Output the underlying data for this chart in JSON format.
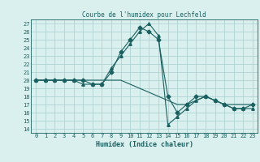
{
  "title": "Courbe de l'humidex pour Lechfeld",
  "xlabel": "Humidex (Indice chaleur)",
  "xlim": [
    -0.5,
    23.5
  ],
  "ylim": [
    13.5,
    27.5
  ],
  "yticks": [
    14,
    15,
    16,
    17,
    18,
    19,
    20,
    21,
    22,
    23,
    24,
    25,
    26,
    27
  ],
  "xticks": [
    0,
    1,
    2,
    3,
    4,
    5,
    6,
    7,
    8,
    9,
    10,
    11,
    12,
    13,
    14,
    15,
    16,
    17,
    18,
    19,
    20,
    21,
    22,
    23
  ],
  "bg_color": "#d9f0ee",
  "grid_color": "#a8cece",
  "line_color": "#1a6060",
  "series1_x": [
    0,
    1,
    2,
    3,
    4,
    5,
    6,
    7,
    8,
    9,
    10,
    11,
    12,
    13,
    14,
    15,
    16,
    17,
    18,
    19,
    20,
    21,
    22,
    23
  ],
  "series1_y": [
    20.0,
    20.0,
    20.0,
    20.0,
    20.0,
    20.0,
    19.5,
    19.5,
    21.0,
    23.5,
    25.0,
    26.5,
    26.0,
    25.0,
    18.0,
    16.0,
    17.0,
    18.0,
    18.0,
    17.5,
    17.0,
    16.5,
    16.5,
    17.0
  ],
  "series2_x": [
    0,
    1,
    2,
    3,
    4,
    5,
    6,
    7,
    8,
    9,
    10,
    11,
    12,
    13,
    14,
    15,
    16,
    17,
    18,
    19,
    20,
    21,
    22,
    23
  ],
  "series2_y": [
    20.0,
    20.0,
    20.0,
    20.0,
    20.0,
    19.5,
    19.5,
    19.5,
    21.5,
    23.0,
    24.5,
    26.0,
    27.0,
    25.5,
    14.5,
    15.5,
    16.5,
    17.5,
    18.0,
    17.5,
    17.0,
    16.5,
    16.5,
    16.5
  ],
  "series3_x": [
    0,
    1,
    2,
    3,
    4,
    5,
    6,
    7,
    8,
    9,
    10,
    11,
    12,
    13,
    14,
    15,
    16,
    17,
    18,
    19,
    20,
    21,
    22,
    23
  ],
  "series3_y": [
    20.0,
    20.0,
    20.0,
    20.0,
    20.0,
    20.0,
    20.0,
    20.0,
    20.0,
    20.0,
    19.5,
    19.0,
    18.5,
    18.0,
    17.5,
    17.0,
    17.0,
    17.5,
    18.0,
    17.5,
    17.0,
    17.0,
    17.0,
    17.0
  ],
  "marker1": "D",
  "marker2": "^",
  "marker_size": 2.5,
  "linewidth": 0.8,
  "tick_fontsize": 5.0,
  "xlabel_fontsize": 6.0,
  "title_fontsize": 5.5
}
